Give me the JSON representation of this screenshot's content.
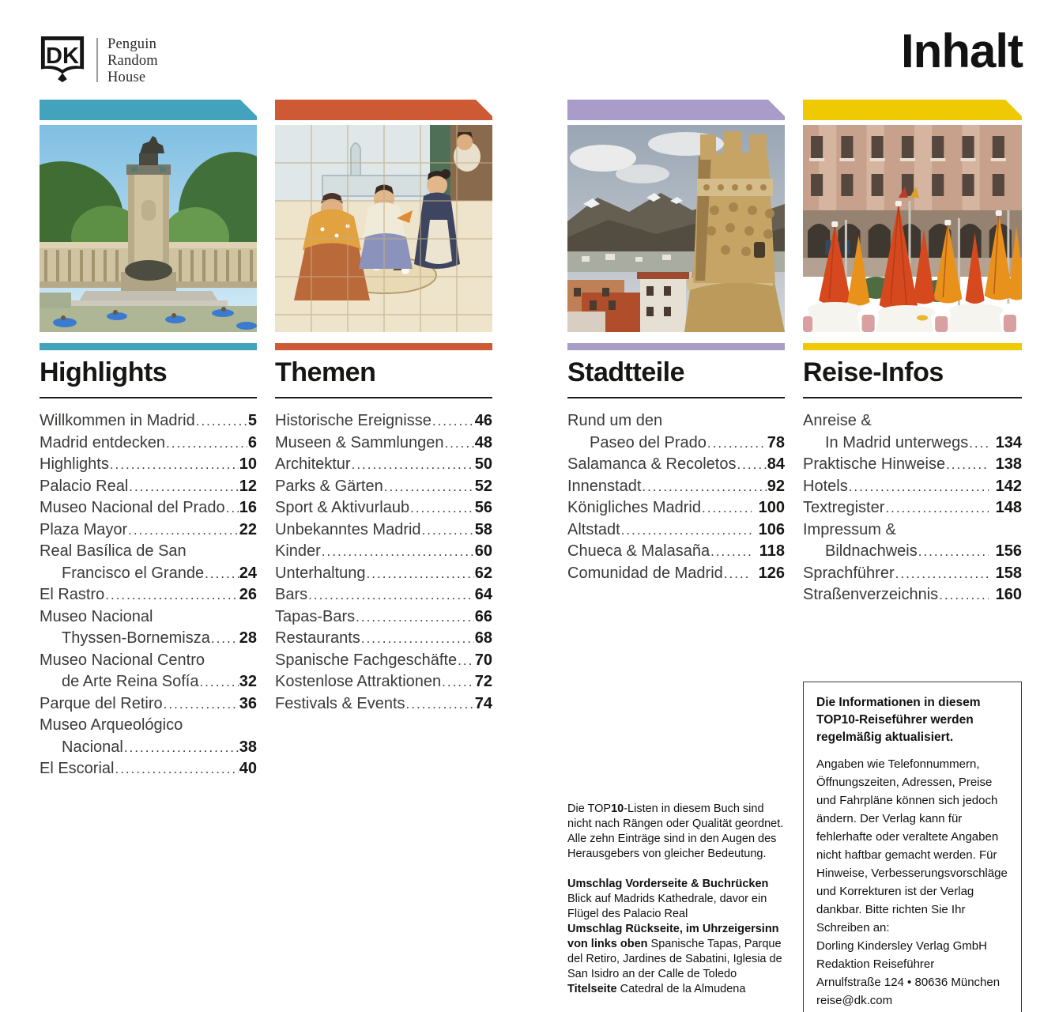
{
  "page": {
    "title": "Inhalt"
  },
  "logo": {
    "dk_label": "DK",
    "publisher": "Penguin\nRandom\nHouse"
  },
  "accent_colors": {
    "teal": "#43a3bd",
    "orange": "#cd5a35",
    "purple": "#a99cc9",
    "yellow": "#eec904"
  },
  "columns": [
    {
      "id": "highlights",
      "title": "Highlights",
      "color": "#43a3bd",
      "photo_name": "retiro-park-monument-photo",
      "entries": [
        {
          "label": "Willkommen in Madrid",
          "page": "5"
        },
        {
          "label": "Madrid entdecken",
          "page": "6"
        },
        {
          "label": "Highlights",
          "page": "10"
        },
        {
          "label": "Palacio Real",
          "page": "12"
        },
        {
          "label": "Museo Nacional del Prado",
          "page": "16"
        },
        {
          "label": "Plaza Mayor",
          "page": "22"
        },
        {
          "pre": "Real Basílica de San",
          "label": "Francisco el Grande",
          "page": "24"
        },
        {
          "label": "El Rastro",
          "page": "26"
        },
        {
          "pre": "Museo Nacional",
          "label": "Thyssen-Bornemisza",
          "page": "28"
        },
        {
          "pre": "Museo Nacional Centro",
          "label": "de Arte Reina Sofía",
          "page": "32"
        },
        {
          "label": "Parque del Retiro",
          "page": "36"
        },
        {
          "pre": "Museo Arqueológico",
          "label": "Nacional",
          "page": "38"
        },
        {
          "label": "El Escorial",
          "page": "40"
        }
      ]
    },
    {
      "id": "themen",
      "title": "Themen",
      "color": "#cd5a35",
      "photo_name": "azulejo-tile-mural-photo",
      "entries": [
        {
          "label": "Historische Ereignisse",
          "page": "46"
        },
        {
          "label": "Museen & Sammlungen",
          "page": "48"
        },
        {
          "label": "Architektur",
          "page": "50"
        },
        {
          "label": "Parks & Gärten",
          "page": "52"
        },
        {
          "label": "Sport & Aktivurlaub",
          "page": "56"
        },
        {
          "label": "Unbekanntes Madrid",
          "page": "58"
        },
        {
          "label": "Kinder",
          "page": "60"
        },
        {
          "label": "Unterhaltung",
          "page": "62"
        },
        {
          "label": "Bars",
          "page": "64"
        },
        {
          "label": "Tapas-Bars",
          "page": "66"
        },
        {
          "label": "Restaurants",
          "page": "68"
        },
        {
          "label": "Spanische Fachgeschäfte",
          "page": "70"
        },
        {
          "label": "Kostenlose Attraktionen",
          "page": "72"
        },
        {
          "label": "Festivals & Events",
          "page": "74"
        }
      ]
    },
    {
      "id": "stadtteile",
      "title": "Stadtteile",
      "color": "#a99cc9",
      "photo_name": "manzanares-castle-tower-photo",
      "entries": [
        {
          "pre": "Rund um den",
          "label": "Paseo del Prado",
          "page": "78"
        },
        {
          "label": "Salamanca & Recoletos",
          "page": "84"
        },
        {
          "label": "Innenstadt",
          "page": "92"
        },
        {
          "label": "Königliches Madrid",
          "page": "100"
        },
        {
          "label": "Altstadt",
          "page": "106"
        },
        {
          "label": "Chueca & Malasaña",
          "page": "118"
        },
        {
          "label": "Comunidad de Madrid",
          "page": "126"
        }
      ]
    },
    {
      "id": "reise-infos",
      "title": "Reise-Infos",
      "color": "#eec904",
      "photo_name": "plaza-mayor-umbrellas-photo",
      "entries": [
        {
          "pre": "Anreise &",
          "label": "In Madrid unterwegs",
          "page": "134"
        },
        {
          "label": "Praktische Hinweise",
          "page": "138"
        },
        {
          "label": "Hotels",
          "page": "142"
        },
        {
          "label": "Textregister",
          "page": "148"
        },
        {
          "pre": "Impressum &",
          "label": "Bildnachweis",
          "page": "156"
        },
        {
          "label": "Sprachführer",
          "page": "158"
        },
        {
          "label": "Straßenverzeichnis",
          "page": "160"
        }
      ]
    }
  ],
  "notes": {
    "para1": [
      {
        "t": "Die TOP"
      },
      {
        "t": "10",
        "b": true
      },
      {
        "t": "-Listen in diesem Buch sind nicht nach Rängen oder Qualität geordnet. Alle zehn Einträge sind in den Augen des Herausgebers von gleicher Bedeutung."
      }
    ],
    "para2": [
      {
        "t": "Umschlag Vorderseite & Buchrücken",
        "b": true,
        "br": true
      },
      {
        "t": "Blick auf Madrids Kathedrale, davor ein Flügel des Palacio Real",
        "br": true
      },
      {
        "t": "Umschlag Rückseite, im Uhrzeigersinn von links oben",
        "b": true
      },
      {
        "t": " Spanische Tapas, Parque del Retiro, Jardines de Sabatini, Iglesia de San Isidro an der Calle de Toledo",
        "br": true
      },
      {
        "t": "Titelseite",
        "b": true
      },
      {
        "t": " Catedral de la Almudena"
      }
    ]
  },
  "info_box": {
    "heading": [
      {
        "t": "Die Informationen in diesem ",
        "b": true
      },
      {
        "t": "TOP"
      },
      {
        "t": "10-Reiseführer werden regelmäßig aktualisiert.",
        "b": true
      }
    ],
    "body": "Angaben wie Telefonnummern, Öffnungszeiten, Adressen, Preise und Fahrpläne können sich jedoch ändern. Der Verlag kann für fehlerhafte oder veraltete Angaben nicht haftbar gemacht werden. Für Hinweise, Verbesserungsvorschläge und Korrekturen ist der Verlag dankbar. Bitte richten Sie Ihr Schreiben an:\nDorling Kindersley Verlag GmbH\nRedaktion Reiseführer\nArnulfstraße 124 • 80636 München\nreise@dk.com"
  }
}
